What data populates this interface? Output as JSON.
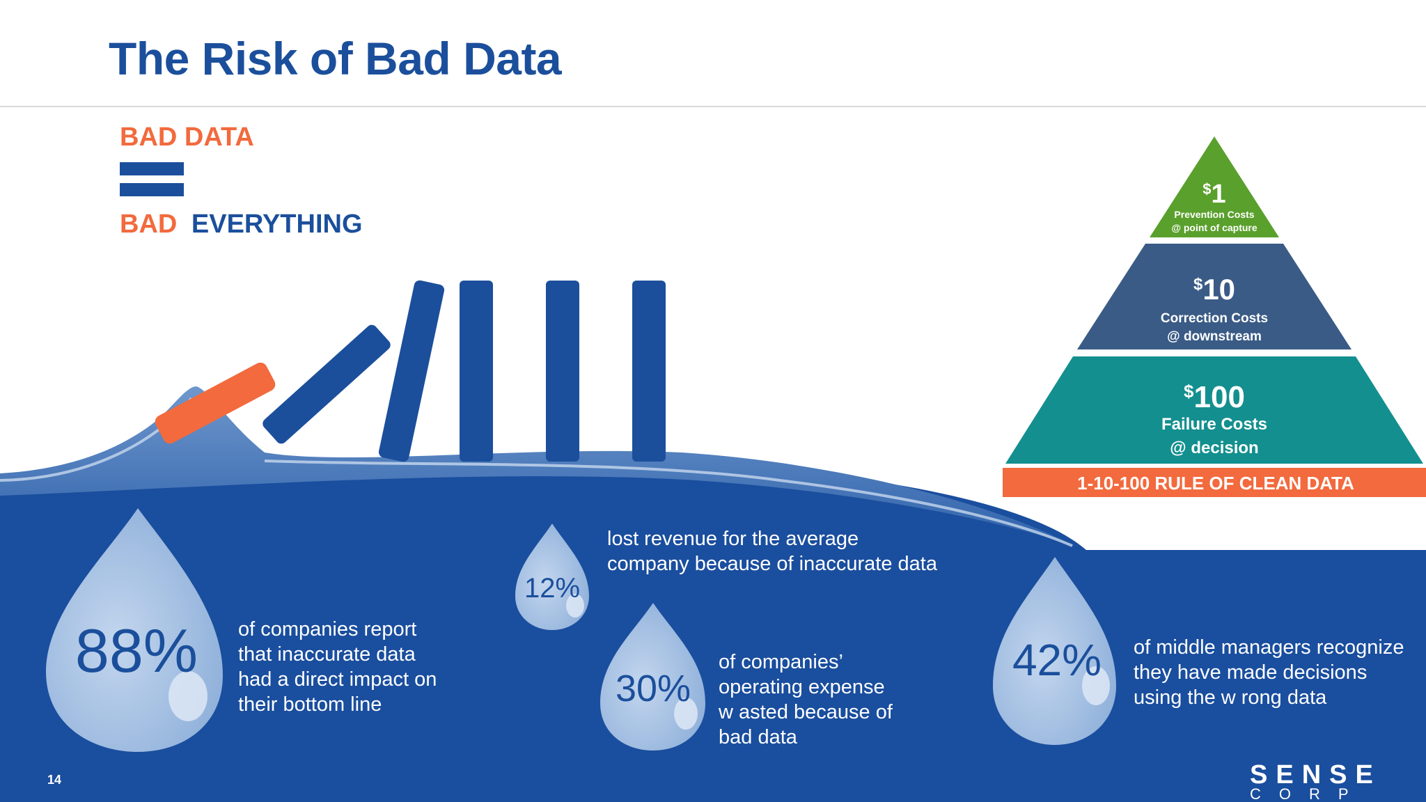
{
  "slide": {
    "title": "The Risk of Bad Data",
    "page_number": "14"
  },
  "headline": {
    "line1": "BAD DATA",
    "line2_part1": "BAD",
    "line2_part2": "EVERYTHING"
  },
  "pyramid": {
    "tier1": {
      "amount": "1",
      "currency": "$",
      "label1": "Prevention Costs",
      "label2": "@ point of capture"
    },
    "tier2": {
      "amount": "10",
      "currency": "$",
      "label1": "Correction Costs",
      "label2": "@ downstream"
    },
    "tier3": {
      "amount": "100",
      "currency": "$",
      "label1": "Failure Costs",
      "label2": "@ decision"
    },
    "banner": "1-10-100 RULE OF CLEAN DATA"
  },
  "stats": [
    {
      "value": "88%",
      "lines": [
        "of companies report",
        "that inaccurate data",
        "had a direct impact on",
        "their bottom line"
      ]
    },
    {
      "value": "12%",
      "lines": [
        "lost revenue for the average",
        "company because of inaccurate data"
      ]
    },
    {
      "value": "30%",
      "lines": [
        "of companies’",
        "operating expense",
        "w asted because of",
        "bad data"
      ]
    },
    {
      "value": "42%",
      "lines": [
        "of middle managers recognize",
        "they have made decisions",
        "using the w rong data"
      ]
    }
  ],
  "logo": {
    "line1": "SENSE",
    "line2": "CORP"
  },
  "colors": {
    "brand_blue": "#1b4f9c",
    "orange": "#f26a3d",
    "water": "#1a4e9e",
    "drop": "#a9c4e4",
    "tier_green": "#5aa02c",
    "tier_slate": "#3a5b86",
    "tier_teal": "#138f8f"
  }
}
